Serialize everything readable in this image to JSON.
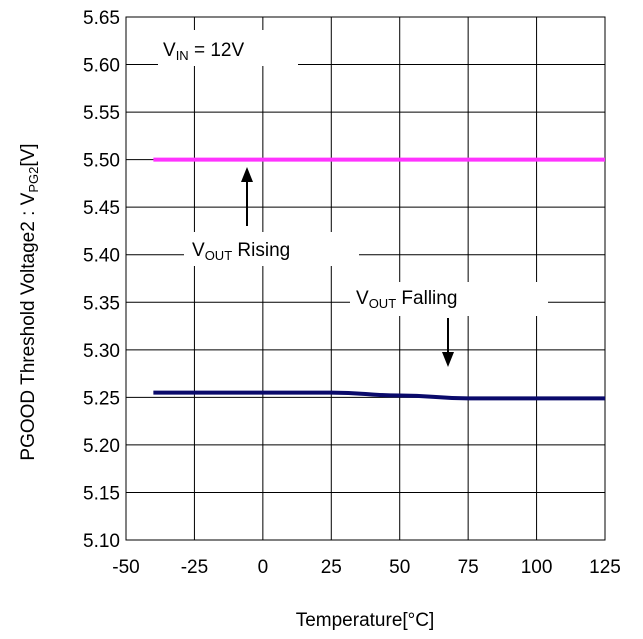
{
  "chart_data": {
    "type": "line",
    "xlabel": "Temperature[°C]",
    "ylabel": "PGOOD Threshold Voltage2 : V",
    "ylabel_sub": "PG2",
    "ylabel_suffix": "[V]",
    "xlim": [
      -50,
      125
    ],
    "ylim": [
      5.1,
      5.65
    ],
    "x_ticks": [
      "-50",
      "-25",
      "0",
      "25",
      "50",
      "75",
      "100",
      "125"
    ],
    "y_ticks": [
      "5.10",
      "5.15",
      "5.20",
      "5.25",
      "5.30",
      "5.35",
      "5.40",
      "5.45",
      "5.50",
      "5.55",
      "5.60",
      "5.65"
    ],
    "grid": true,
    "series": [
      {
        "name": "VOUT Rising",
        "color": "#ff33ff",
        "x": [
          -40,
          -25,
          0,
          25,
          50,
          75,
          100,
          125
        ],
        "y": [
          5.5,
          5.5,
          5.5,
          5.5,
          5.5,
          5.5,
          5.5,
          5.5
        ]
      },
      {
        "name": "VOUT Falling",
        "color": "#0a0a6b",
        "x": [
          -40,
          -25,
          0,
          25,
          50,
          75,
          100,
          125
        ],
        "y": [
          5.255,
          5.255,
          5.255,
          5.255,
          5.252,
          5.249,
          5.249,
          5.249
        ]
      }
    ],
    "annotations": {
      "vin": {
        "main": "V",
        "sub": "IN",
        "rest": " = 12V"
      },
      "rising": {
        "main": "V",
        "sub": "OUT",
        "rest": " Rising"
      },
      "falling": {
        "main": "V",
        "sub": "OUT",
        "rest": " Falling"
      }
    }
  }
}
